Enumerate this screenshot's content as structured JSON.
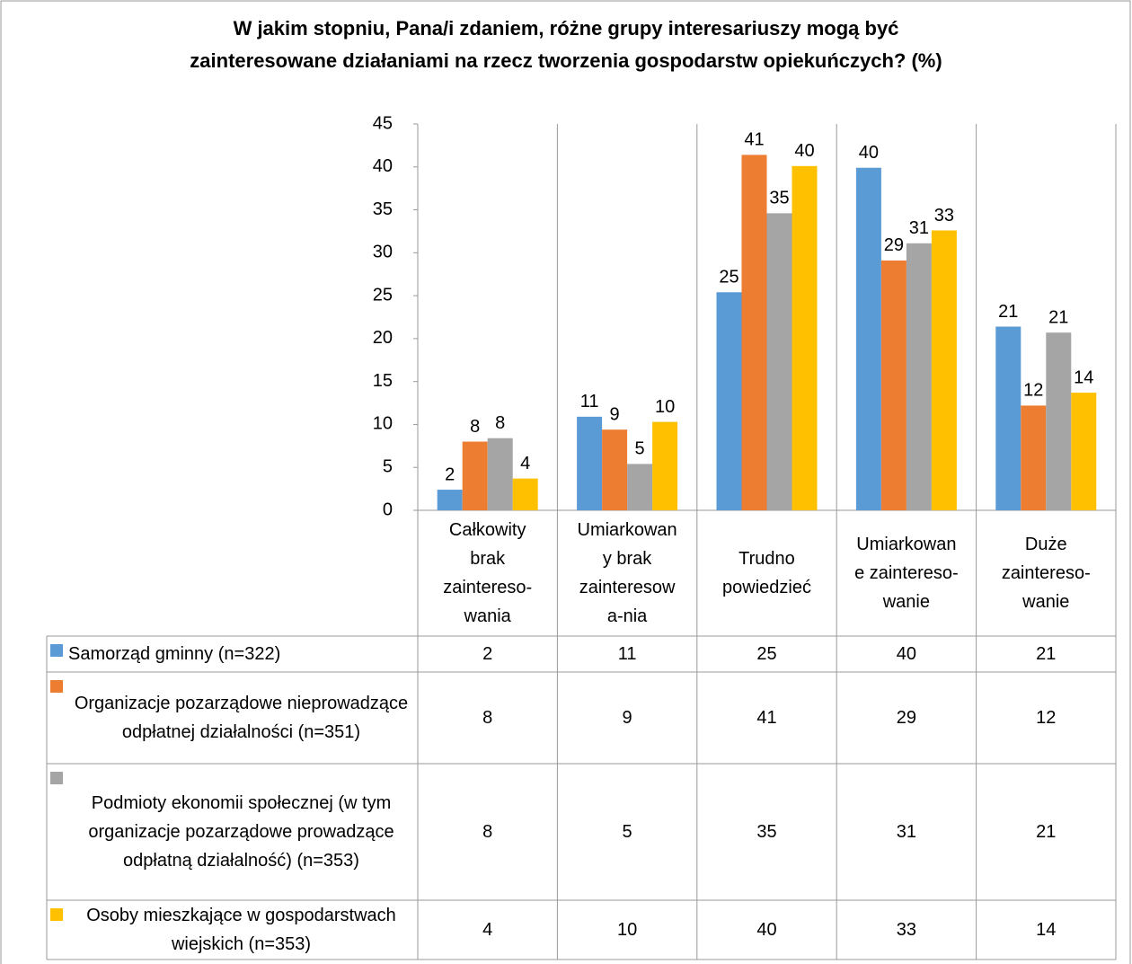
{
  "chart_data": {
    "type": "bar",
    "title": "W jakim stopniu, Pana/i zdaniem, różne grupy interesariuszy mogą być\nzainteresowane działaniami na rzecz tworzenia gospodarstw opiekuńczych? (%)",
    "categories": [
      "Całkowity\nbrak\nzaintereso-\nwania",
      "Umiarkowan\ny brak\nzainteresow\na-nia",
      "Trudno\npowiedzieć",
      "Umiarkowan\ne zaintereso-\nwanie",
      "Duże\nzaintereso-\nwanie"
    ],
    "series": [
      {
        "name": "Samorząd gminny  (n=322)",
        "color": "#5b9bd5",
        "values": [
          2.4,
          10.9,
          25.4,
          39.9,
          21.4
        ],
        "value_labels": [
          "2",
          "11",
          "25",
          "40",
          "21"
        ]
      },
      {
        "name": "Organizacje pozarządowe nieprowadzące odpłatnej działalności (n=351)",
        "color": "#ed7d31",
        "values": [
          8.0,
          9.4,
          41.4,
          29.1,
          12.2
        ],
        "value_labels": [
          "8",
          "9",
          "41",
          "29",
          "12"
        ]
      },
      {
        "name": "Podmioty ekonomii społecznej (w tym organizacje pozarządowe prowadzące odpłatną działalność) (n=353)",
        "color": "#a5a5a5",
        "values": [
          8.4,
          5.4,
          34.6,
          31.1,
          20.7
        ],
        "value_labels": [
          "8",
          "5",
          "35",
          "31",
          "21"
        ]
      },
      {
        "name": "Osoby mieszkające w gospodarstwach wiejskich (n=353)",
        "color": "#ffc000",
        "values": [
          3.7,
          10.3,
          40.1,
          32.6,
          13.7
        ],
        "value_labels": [
          "4",
          "10",
          "40",
          "33",
          "14"
        ]
      }
    ],
    "ylim": [
      0,
      45
    ],
    "yticks": [
      0,
      5,
      10,
      15,
      20,
      25,
      30,
      35,
      40,
      45
    ],
    "grid": false,
    "legend": "table"
  }
}
